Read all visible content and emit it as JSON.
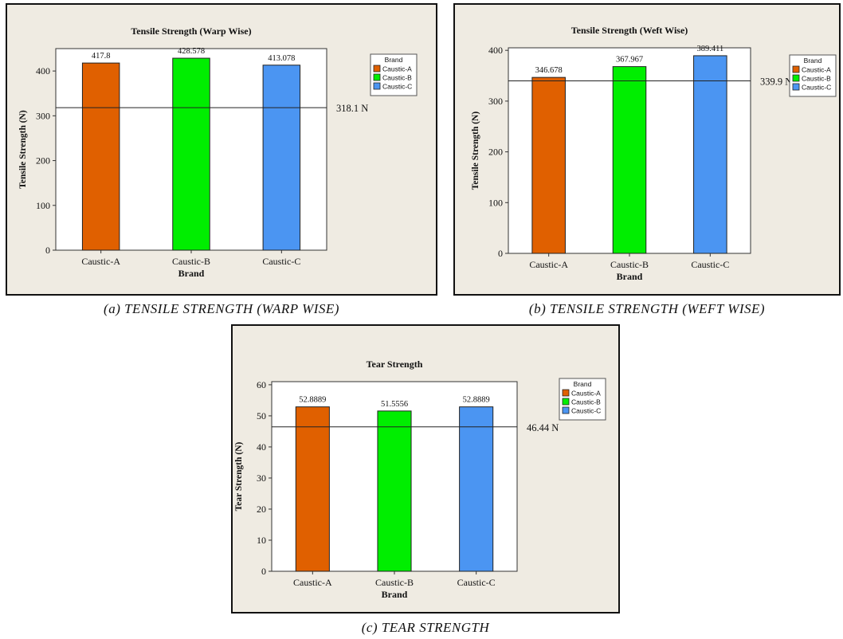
{
  "legend_title": "Brand",
  "chart_data": [
    {
      "type": "bar",
      "title": "Tensile Strength (Warp Wise)",
      "xlabel": "Brand",
      "ylabel": "Tensile Strength (N)",
      "categories": [
        "Caustic-A",
        "Caustic-B",
        "Caustic-C"
      ],
      "values": [
        417.8,
        428.578,
        413.078
      ],
      "value_labels": [
        "417.8",
        "428.578",
        "413.078"
      ],
      "colors": [
        "#e06000",
        "#00ee00",
        "#4b95f2"
      ],
      "ylim": [
        0,
        450
      ],
      "yticks": [
        0,
        100,
        200,
        300,
        400
      ],
      "reference_line": {
        "value": 318.1,
        "label": "318.1 N"
      },
      "legend": [
        "Caustic-A",
        "Caustic-B",
        "Caustic-C"
      ],
      "caption": "(a) TENSILE STRENGTH (WARP WISE)"
    },
    {
      "type": "bar",
      "title": "Tensile Strength (Weft Wise)",
      "xlabel": "Brand",
      "ylabel": "Tensile Strength (N)",
      "categories": [
        "Caustic-A",
        "Caustic-B",
        "Caustic-C"
      ],
      "values": [
        346.678,
        367.967,
        389.411
      ],
      "value_labels": [
        "346.678",
        "367.967",
        "389.411"
      ],
      "colors": [
        "#e06000",
        "#00ee00",
        "#4b95f2"
      ],
      "ylim": [
        0,
        405
      ],
      "yticks": [
        0,
        100,
        200,
        300,
        400
      ],
      "reference_line": {
        "value": 339.9,
        "label": "339.9 N"
      },
      "legend": [
        "Caustic-A",
        "Caustic-B",
        "Caustic-C"
      ],
      "caption": "(b) TENSILE STRENGTH (WEFT WISE)"
    },
    {
      "type": "bar",
      "title": "Tear Strength",
      "xlabel": "Brand",
      "ylabel": "Tear Strength (N)",
      "categories": [
        "Caustic-A",
        "Caustic-B",
        "Caustic-C"
      ],
      "values": [
        52.8889,
        51.5556,
        52.8889
      ],
      "value_labels": [
        "52.8889",
        "51.5556",
        "52.8889"
      ],
      "colors": [
        "#e06000",
        "#00ee00",
        "#4b95f2"
      ],
      "ylim": [
        0,
        61
      ],
      "yticks": [
        0,
        10,
        20,
        30,
        40,
        50,
        60
      ],
      "reference_line": {
        "value": 46.44,
        "label": "46.44 N"
      },
      "legend": [
        "Caustic-A",
        "Caustic-B",
        "Caustic-C"
      ],
      "caption": "(c) TEAR STRENGTH"
    }
  ]
}
